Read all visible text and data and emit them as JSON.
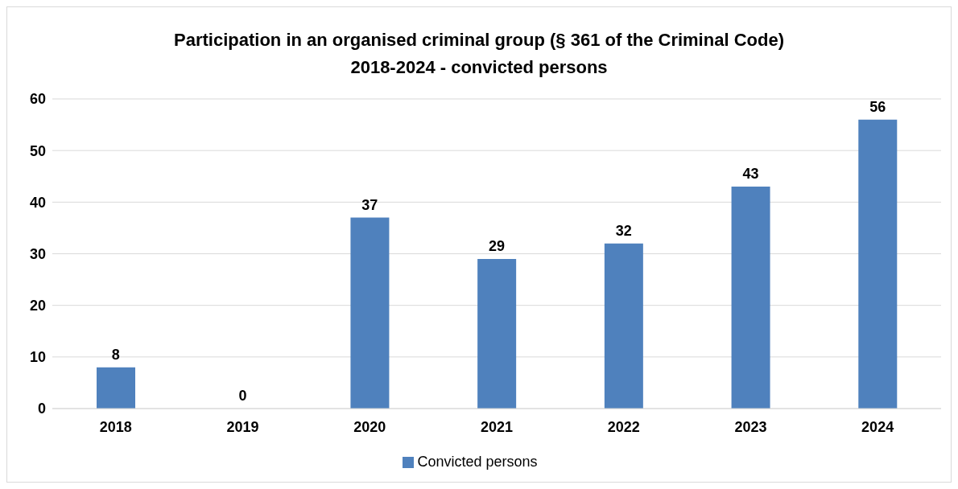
{
  "chart_data": {
    "type": "bar",
    "title": "Participation in an organised criminal group (§ 361 of the Criminal Code)\n2018-2024 - convicted persons",
    "categories": [
      "2018",
      "2019",
      "2020",
      "2021",
      "2022",
      "2023",
      "2024"
    ],
    "series": [
      {
        "name": "Convicted persons",
        "color": "#4f81bd",
        "values": [
          8,
          0,
          37,
          29,
          32,
          43,
          56
        ]
      }
    ],
    "ylim": [
      0,
      60
    ],
    "yticks": [
      0,
      10,
      20,
      30,
      40,
      50,
      60
    ],
    "grid": "y",
    "legend": "bottom",
    "data_labels": true
  }
}
